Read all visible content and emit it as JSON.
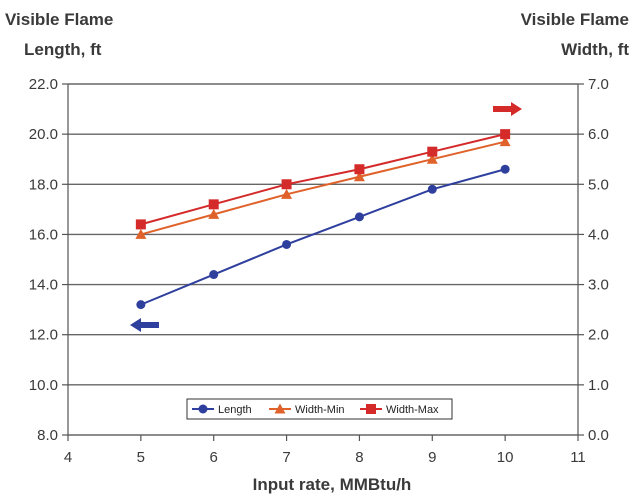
{
  "chart_data": {
    "type": "line",
    "title_left": [
      "Visible Flame",
      "Length, ft"
    ],
    "title_right": [
      "Visible Flame",
      "Width, ft"
    ],
    "xlabel": "Input rate, MMBtu/h",
    "xlim": [
      4,
      11
    ],
    "x_ticks": [
      "4",
      "5",
      "6",
      "7",
      "8",
      "9",
      "10",
      "11"
    ],
    "ylim_left": [
      8,
      22
    ],
    "y_ticks_left": [
      "8.0",
      "10.0",
      "12.0",
      "14.0",
      "16.0",
      "18.0",
      "20.0",
      "22.0"
    ],
    "ylim_right": [
      0,
      7
    ],
    "y_ticks_right": [
      "0.0",
      "1.0",
      "2.0",
      "3.0",
      "4.0",
      "5.0",
      "6.0",
      "7.0"
    ],
    "grid": "horizontal",
    "legend_position": "bottom-center",
    "series": [
      {
        "name": "Length",
        "axis": "left",
        "marker": "circle",
        "color": "#2e3f9e",
        "x": [
          5,
          6,
          7,
          8,
          9,
          10
        ],
        "y": [
          13.2,
          14.4,
          15.6,
          16.7,
          17.8,
          18.6
        ]
      },
      {
        "name": "Width-Min",
        "axis": "right",
        "marker": "triangle",
        "color": "#e0622b",
        "x": [
          5,
          6,
          7,
          8,
          9,
          10
        ],
        "y": [
          4.0,
          4.4,
          4.8,
          5.15,
          5.5,
          5.85
        ]
      },
      {
        "name": "Width-Max",
        "axis": "right",
        "marker": "square",
        "color": "#d42a2a",
        "x": [
          5,
          6,
          7,
          8,
          9,
          10
        ],
        "y": [
          4.2,
          4.6,
          5.0,
          5.3,
          5.65,
          6.0
        ]
      }
    ],
    "annotations": [
      {
        "type": "arrow",
        "direction": "left",
        "color": "#2e3f9e",
        "meaning": "left-axis"
      },
      {
        "type": "arrow",
        "direction": "right",
        "color": "#d42a2a",
        "meaning": "right-axis"
      }
    ]
  }
}
